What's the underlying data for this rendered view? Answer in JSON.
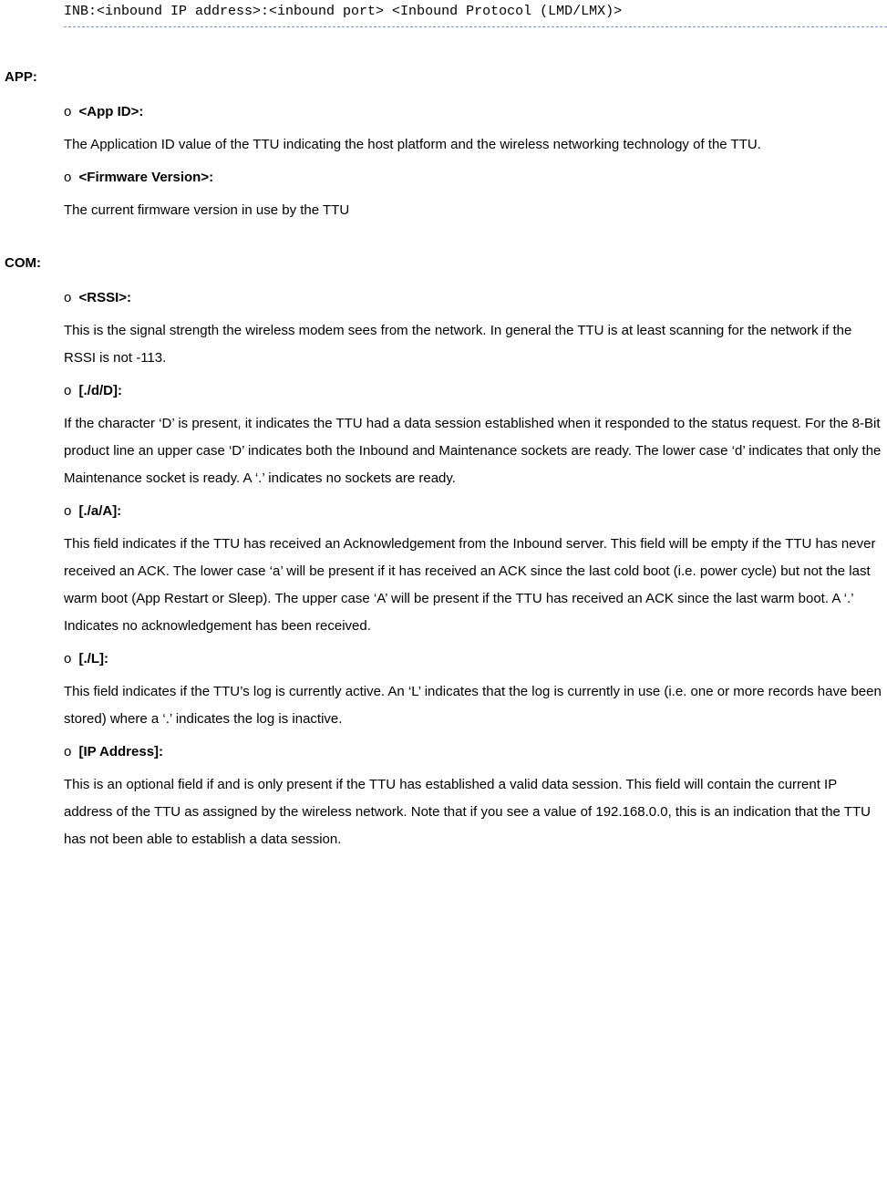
{
  "codeBlock": "INB:<inbound IP address>:<inbound port> <Inbound Protocol (LMD/LMX)>",
  "sections": {
    "app": {
      "label": "APP:",
      "items": [
        {
          "header": "<App ID>:",
          "body": "The Application ID value of the TTU indicating the host platform and the wireless networking technology of the TTU."
        },
        {
          "header": "<Firmware Version>:",
          "body": "The current firmware version in use by the TTU"
        }
      ]
    },
    "com": {
      "label": "COM:",
      "items": [
        {
          "header": "<RSSI>:",
          "body": "This is the signal strength the wireless modem sees from the network. In general the TTU is at least scanning for the network if the RSSI is not -113."
        },
        {
          "header": "[./d/D]:",
          "body": "If the character ‘D’ is present, it indicates the TTU had a data session established when it responded to the status request. For the 8-Bit product line an upper case ‘D’ indicates both the Inbound and Maintenance sockets are ready. The lower case ‘d’ indicates that only the Maintenance socket is ready. A ‘.’ indicates no sockets are ready."
        },
        {
          "header": "[./a/A]:",
          "body": "This field indicates if the TTU has received an Acknowledgement from the Inbound server. This field will be empty if the TTU has never received an ACK. The lower case ‘a’ will be present if it has received an ACK since the last cold boot (i.e. power cycle) but not the last warm boot (App Restart or Sleep). The upper case ‘A’ will be present if the TTU has received an ACK since the last warm boot. A ‘.’ Indicates no acknowledgement has been received."
        },
        {
          "header": "[./L]:",
          "body": "This field indicates if the TTU’s log is currently active. An ‘L’ indicates that the log is currently in use (i.e. one or more records have been stored) where a ‘.’ indicates the log is inactive."
        },
        {
          "header": "[IP Address]:",
          "body": "This is an optional field if and is only present if the TTU has established a valid data session. This field will contain the current IP address of the TTU as assigned by the wireless network. Note that if you see a value of 192.168.0.0, this is an indication that the TTU has not been able to establish a data session."
        }
      ]
    }
  }
}
